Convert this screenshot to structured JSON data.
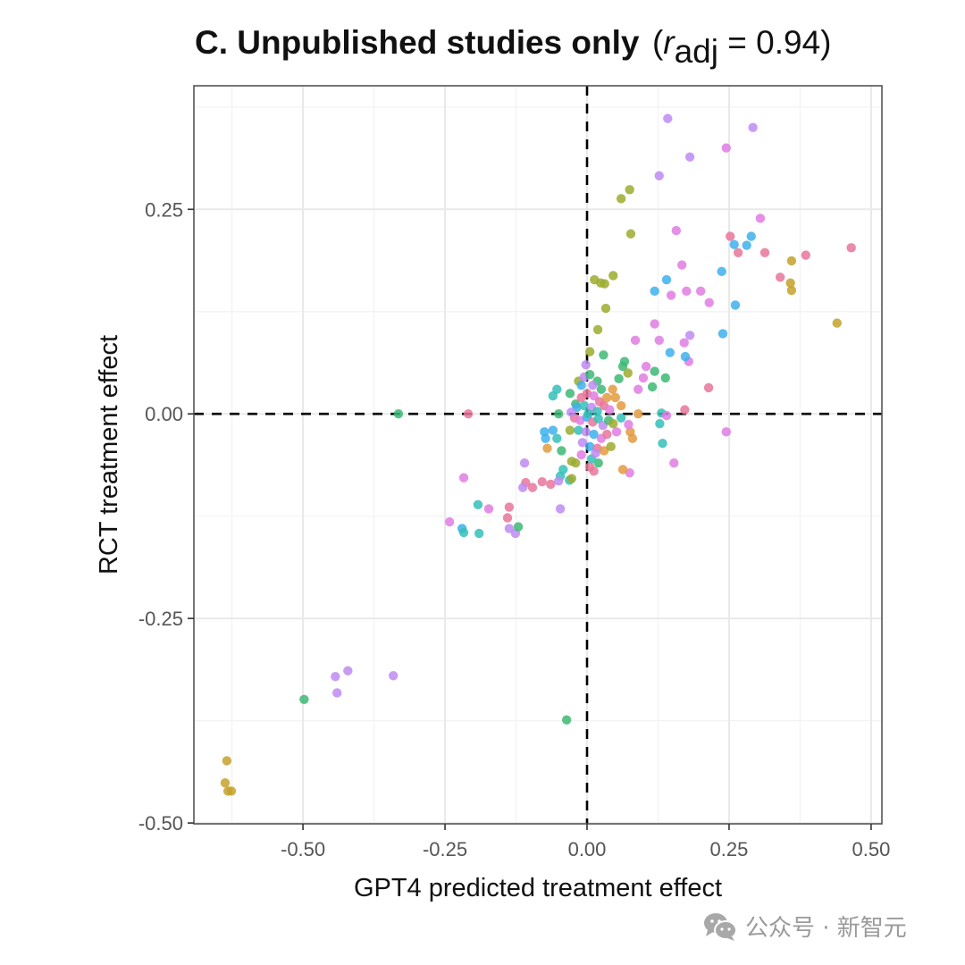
{
  "chart_data": {
    "type": "scatter",
    "title": "C. Unpublished studies only",
    "title_stat": {
      "symbol": "r",
      "subscript": "adj",
      "value": "0.94"
    },
    "xlabel": "GPT4 predicted treatment effect",
    "ylabel": "RCT treatment effect",
    "xlim": [
      -0.692,
      0.519
    ],
    "ylim": [
      -0.501,
      0.401
    ],
    "x_ticks": [
      -0.5,
      -0.25,
      0.0,
      0.25,
      0.5
    ],
    "x_tick_labels": [
      "-0.50",
      "-0.25",
      "0.00",
      "0.25",
      "0.50"
    ],
    "y_ticks": [
      -0.5,
      -0.25,
      0.0,
      0.25
    ],
    "y_tick_labels": [
      "-0.50",
      "-0.25",
      "0.00",
      "0.25"
    ],
    "x_minor": [
      -0.625,
      -0.375,
      -0.125,
      0.125,
      0.375
    ],
    "y_minor": [
      -0.375,
      -0.125,
      0.125,
      0.375
    ],
    "grid": true,
    "reference_lines": {
      "x": 0,
      "y": 0,
      "style": "dashed"
    },
    "legend": "none",
    "palette": {
      "pink": "#E8769A",
      "orange": "#E39A3E",
      "gold": "#C4A22C",
      "olive": "#9CAB2E",
      "green": "#3DB874",
      "teal": "#34BFB8",
      "blue": "#3DB0EC",
      "purple": "#BE8BF2",
      "magenta": "#E07DE3"
    },
    "points": [
      {
        "x": 0.142,
        "y": 0.361,
        "g": "purple"
      },
      {
        "x": 0.292,
        "y": 0.35,
        "g": "purple"
      },
      {
        "x": 0.181,
        "y": 0.314,
        "g": "purple"
      },
      {
        "x": 0.127,
        "y": 0.291,
        "g": "purple"
      },
      {
        "x": 0.245,
        "y": 0.325,
        "g": "magenta"
      },
      {
        "x": 0.06,
        "y": 0.263,
        "g": "olive"
      },
      {
        "x": 0.075,
        "y": 0.274,
        "g": "olive"
      },
      {
        "x": 0.077,
        "y": 0.22,
        "g": "olive"
      },
      {
        "x": 0.252,
        "y": 0.217,
        "g": "pink"
      },
      {
        "x": 0.266,
        "y": 0.197,
        "g": "pink"
      },
      {
        "x": 0.313,
        "y": 0.197,
        "g": "pink"
      },
      {
        "x": 0.465,
        "y": 0.203,
        "g": "pink"
      },
      {
        "x": 0.385,
        "y": 0.194,
        "g": "pink"
      },
      {
        "x": 0.34,
        "y": 0.167,
        "g": "pink"
      },
      {
        "x": 0.289,
        "y": 0.217,
        "g": "blue"
      },
      {
        "x": 0.259,
        "y": 0.207,
        "g": "blue"
      },
      {
        "x": 0.281,
        "y": 0.206,
        "g": "blue"
      },
      {
        "x": 0.237,
        "y": 0.174,
        "g": "blue"
      },
      {
        "x": 0.14,
        "y": 0.164,
        "g": "blue"
      },
      {
        "x": 0.119,
        "y": 0.15,
        "g": "blue"
      },
      {
        "x": 0.261,
        "y": 0.133,
        "g": "blue"
      },
      {
        "x": 0.305,
        "y": 0.239,
        "g": "magenta"
      },
      {
        "x": 0.157,
        "y": 0.224,
        "g": "magenta"
      },
      {
        "x": 0.167,
        "y": 0.182,
        "g": "magenta"
      },
      {
        "x": 0.175,
        "y": 0.15,
        "g": "magenta"
      },
      {
        "x": 0.148,
        "y": 0.145,
        "g": "magenta"
      },
      {
        "x": 0.2,
        "y": 0.15,
        "g": "magenta"
      },
      {
        "x": 0.215,
        "y": 0.136,
        "g": "magenta"
      },
      {
        "x": 0.36,
        "y": 0.187,
        "g": "gold"
      },
      {
        "x": 0.358,
        "y": 0.16,
        "g": "gold"
      },
      {
        "x": 0.36,
        "y": 0.151,
        "g": "gold"
      },
      {
        "x": 0.44,
        "y": 0.111,
        "g": "gold"
      },
      {
        "x": 0.013,
        "y": 0.164,
        "g": "olive"
      },
      {
        "x": 0.024,
        "y": 0.16,
        "g": "olive"
      },
      {
        "x": 0.031,
        "y": 0.159,
        "g": "olive"
      },
      {
        "x": 0.046,
        "y": 0.169,
        "g": "olive"
      },
      {
        "x": 0.033,
        "y": 0.129,
        "g": "olive"
      },
      {
        "x": 0.019,
        "y": 0.103,
        "g": "olive"
      },
      {
        "x": 0.005,
        "y": 0.076,
        "g": "olive"
      },
      {
        "x": 0.119,
        "y": 0.11,
        "g": "magenta"
      },
      {
        "x": 0.085,
        "y": 0.09,
        "g": "magenta"
      },
      {
        "x": 0.127,
        "y": 0.09,
        "g": "magenta"
      },
      {
        "x": 0.171,
        "y": 0.087,
        "g": "magenta"
      },
      {
        "x": 0.181,
        "y": 0.096,
        "g": "purple"
      },
      {
        "x": 0.179,
        "y": 0.064,
        "g": "magenta"
      },
      {
        "x": 0.146,
        "y": 0.075,
        "g": "blue"
      },
      {
        "x": 0.173,
        "y": 0.07,
        "g": "blue"
      },
      {
        "x": 0.239,
        "y": 0.098,
        "g": "blue"
      },
      {
        "x": 0.104,
        "y": 0.058,
        "g": "magenta"
      },
      {
        "x": 0.099,
        "y": 0.044,
        "g": "magenta"
      },
      {
        "x": 0.119,
        "y": 0.052,
        "g": "green"
      },
      {
        "x": 0.138,
        "y": 0.044,
        "g": "green"
      },
      {
        "x": 0.214,
        "y": 0.032,
        "g": "pink"
      },
      {
        "x": 0.245,
        "y": -0.022,
        "g": "magenta"
      },
      {
        "x": 0.172,
        "y": 0.005,
        "g": "pink"
      },
      {
        "x": 0.063,
        "y": 0.058,
        "g": "green"
      },
      {
        "x": 0.066,
        "y": 0.064,
        "g": "green"
      },
      {
        "x": 0.029,
        "y": 0.072,
        "g": "green"
      },
      {
        "x": 0.056,
        "y": 0.043,
        "g": "green"
      },
      {
        "x": 0.072,
        "y": 0.05,
        "g": "olive"
      },
      {
        "x": 0.115,
        "y": 0.033,
        "g": "green"
      },
      {
        "x": 0.09,
        "y": 0.03,
        "g": "magenta"
      },
      {
        "x": 0.131,
        "y": 0.001,
        "g": "teal"
      },
      {
        "x": 0.128,
        "y": -0.012,
        "g": "teal"
      },
      {
        "x": 0.14,
        "y": -0.002,
        "g": "magenta"
      },
      {
        "x": 0.133,
        "y": -0.036,
        "g": "teal"
      },
      {
        "x": 0.153,
        "y": -0.06,
        "g": "magenta"
      },
      {
        "x": 0.075,
        "y": -0.072,
        "g": "magenta"
      },
      {
        "x": 0.063,
        "y": -0.068,
        "g": "orange"
      },
      {
        "x": 0.02,
        "y": -0.06,
        "g": "green"
      },
      {
        "x": 0.09,
        "y": 0.0,
        "g": "orange"
      },
      {
        "x": 0.06,
        "y": 0.01,
        "g": "orange"
      },
      {
        "x": 0.05,
        "y": 0.02,
        "g": "orange"
      },
      {
        "x": 0.076,
        "y": -0.022,
        "g": "orange"
      },
      {
        "x": 0.08,
        "y": -0.03,
        "g": "orange"
      },
      {
        "x": 0.073,
        "y": -0.013,
        "g": "magenta"
      },
      {
        "x": 0.06,
        "y": -0.005,
        "g": "teal"
      },
      {
        "x": -0.332,
        "y": 0.0,
        "g": "green"
      },
      {
        "x": -0.209,
        "y": 0.0,
        "g": "pink"
      },
      {
        "x": -0.443,
        "y": -0.321,
        "g": "purple"
      },
      {
        "x": -0.421,
        "y": -0.314,
        "g": "purple"
      },
      {
        "x": -0.44,
        "y": -0.341,
        "g": "purple"
      },
      {
        "x": -0.341,
        "y": -0.32,
        "g": "purple"
      },
      {
        "x": -0.498,
        "y": -0.349,
        "g": "green"
      },
      {
        "x": -0.036,
        "y": -0.374,
        "g": "green"
      },
      {
        "x": -0.634,
        "y": -0.424,
        "g": "gold"
      },
      {
        "x": -0.637,
        "y": -0.451,
        "g": "gold"
      },
      {
        "x": -0.632,
        "y": -0.461,
        "g": "gold"
      },
      {
        "x": -0.626,
        "y": -0.461,
        "g": "gold"
      },
      {
        "x": -0.217,
        "y": -0.078,
        "g": "magenta"
      },
      {
        "x": -0.242,
        "y": -0.132,
        "g": "magenta"
      },
      {
        "x": -0.22,
        "y": -0.14,
        "g": "blue"
      },
      {
        "x": -0.217,
        "y": -0.145,
        "g": "teal"
      },
      {
        "x": -0.19,
        "y": -0.146,
        "g": "teal"
      },
      {
        "x": -0.192,
        "y": -0.111,
        "g": "teal"
      },
      {
        "x": -0.173,
        "y": -0.116,
        "g": "magenta"
      },
      {
        "x": -0.137,
        "y": -0.114,
        "g": "pink"
      },
      {
        "x": -0.14,
        "y": -0.127,
        "g": "pink"
      },
      {
        "x": -0.137,
        "y": -0.14,
        "g": "purple"
      },
      {
        "x": -0.126,
        "y": -0.146,
        "g": "purple"
      },
      {
        "x": -0.121,
        "y": -0.138,
        "g": "green"
      },
      {
        "x": -0.11,
        "y": -0.06,
        "g": "purple"
      },
      {
        "x": -0.047,
        "y": -0.116,
        "g": "purple"
      },
      {
        "x": -0.108,
        "y": -0.084,
        "g": "pink"
      },
      {
        "x": -0.096,
        "y": -0.09,
        "g": "pink"
      },
      {
        "x": -0.079,
        "y": -0.083,
        "g": "pink"
      },
      {
        "x": -0.064,
        "y": -0.086,
        "g": "pink"
      },
      {
        "x": -0.113,
        "y": -0.09,
        "g": "purple"
      },
      {
        "x": -0.047,
        "y": -0.076,
        "g": "teal"
      },
      {
        "x": -0.042,
        "y": -0.068,
        "g": "teal"
      },
      {
        "x": -0.031,
        "y": -0.081,
        "g": "teal"
      },
      {
        "x": -0.05,
        "y": -0.082,
        "g": "purple"
      },
      {
        "x": -0.027,
        "y": -0.079,
        "g": "olive"
      },
      {
        "x": -0.027,
        "y": -0.058,
        "g": "olive"
      },
      {
        "x": -0.075,
        "y": -0.022,
        "g": "blue"
      },
      {
        "x": -0.073,
        "y": -0.03,
        "g": "blue"
      },
      {
        "x": -0.06,
        "y": -0.02,
        "g": "blue"
      },
      {
        "x": -0.053,
        "y": -0.03,
        "g": "teal"
      },
      {
        "x": -0.045,
        "y": -0.045,
        "g": "green"
      },
      {
        "x": -0.07,
        "y": -0.042,
        "g": "orange"
      },
      {
        "x": -0.053,
        "y": 0.03,
        "g": "teal"
      },
      {
        "x": -0.06,
        "y": 0.022,
        "g": "teal"
      },
      {
        "x": -0.03,
        "y": 0.025,
        "g": "green"
      },
      {
        "x": -0.015,
        "y": 0.04,
        "g": "olive"
      },
      {
        "x": -0.02,
        "y": 0.012,
        "g": "green"
      },
      {
        "x": -0.05,
        "y": 0.0,
        "g": "green"
      },
      {
        "x": -0.03,
        "y": -0.02,
        "g": "olive"
      },
      {
        "x": -0.005,
        "y": 0.045,
        "g": "purple"
      },
      {
        "x": 0.005,
        "y": 0.048,
        "g": "green"
      },
      {
        "x": 0.018,
        "y": 0.04,
        "g": "green"
      },
      {
        "x": 0.025,
        "y": 0.03,
        "g": "green"
      },
      {
        "x": 0.01,
        "y": 0.035,
        "g": "purple"
      },
      {
        "x": -0.01,
        "y": 0.02,
        "g": "pink"
      },
      {
        "x": 0.0,
        "y": 0.025,
        "g": "pink"
      },
      {
        "x": 0.012,
        "y": 0.022,
        "g": "magenta"
      },
      {
        "x": 0.022,
        "y": 0.015,
        "g": "pink"
      },
      {
        "x": -0.018,
        "y": 0.008,
        "g": "blue"
      },
      {
        "x": -0.005,
        "y": 0.01,
        "g": "teal"
      },
      {
        "x": 0.008,
        "y": 0.008,
        "g": "purple"
      },
      {
        "x": 0.018,
        "y": 0.003,
        "g": "teal"
      },
      {
        "x": 0.03,
        "y": 0.01,
        "g": "pink"
      },
      {
        "x": 0.035,
        "y": 0.02,
        "g": "orange"
      },
      {
        "x": 0.04,
        "y": 0.005,
        "g": "magenta"
      },
      {
        "x": -0.022,
        "y": -0.005,
        "g": "pink"
      },
      {
        "x": -0.012,
        "y": -0.008,
        "g": "magenta"
      },
      {
        "x": 0.0,
        "y": -0.004,
        "g": "blue"
      },
      {
        "x": 0.01,
        "y": -0.01,
        "g": "pink"
      },
      {
        "x": 0.02,
        "y": -0.006,
        "g": "teal"
      },
      {
        "x": 0.028,
        "y": -0.014,
        "g": "purple"
      },
      {
        "x": 0.038,
        "y": -0.008,
        "g": "green"
      },
      {
        "x": 0.046,
        "y": -0.012,
        "g": "olive"
      },
      {
        "x": -0.015,
        "y": -0.02,
        "g": "teal"
      },
      {
        "x": -0.002,
        "y": -0.022,
        "g": "purple"
      },
      {
        "x": 0.012,
        "y": -0.025,
        "g": "blue"
      },
      {
        "x": 0.025,
        "y": -0.03,
        "g": "magenta"
      },
      {
        "x": 0.035,
        "y": -0.025,
        "g": "pink"
      },
      {
        "x": -0.008,
        "y": -0.035,
        "g": "purple"
      },
      {
        "x": 0.005,
        "y": -0.04,
        "g": "blue"
      },
      {
        "x": 0.018,
        "y": -0.042,
        "g": "pink"
      },
      {
        "x": 0.03,
        "y": -0.045,
        "g": "orange"
      },
      {
        "x": -0.01,
        "y": -0.05,
        "g": "magenta"
      },
      {
        "x": 0.008,
        "y": -0.055,
        "g": "teal"
      },
      {
        "x": 0.015,
        "y": -0.048,
        "g": "purple"
      },
      {
        "x": -0.02,
        "y": -0.06,
        "g": "olive"
      },
      {
        "x": 0.005,
        "y": -0.065,
        "g": "pink"
      },
      {
        "x": 0.012,
        "y": -0.07,
        "g": "pink"
      },
      {
        "x": -0.002,
        "y": 0.06,
        "g": "purple"
      },
      {
        "x": -0.01,
        "y": 0.035,
        "g": "blue"
      },
      {
        "x": 0.002,
        "y": 0.0,
        "g": "teal"
      },
      {
        "x": -0.028,
        "y": 0.002,
        "g": "purple"
      },
      {
        "x": 0.045,
        "y": 0.03,
        "g": "orange"
      },
      {
        "x": 0.052,
        "y": -0.022,
        "g": "magenta"
      },
      {
        "x": 0.042,
        "y": -0.04,
        "g": "olive"
      }
    ]
  },
  "watermark": {
    "icon": "wechat-icon",
    "text": "公众号 · 新智元"
  }
}
